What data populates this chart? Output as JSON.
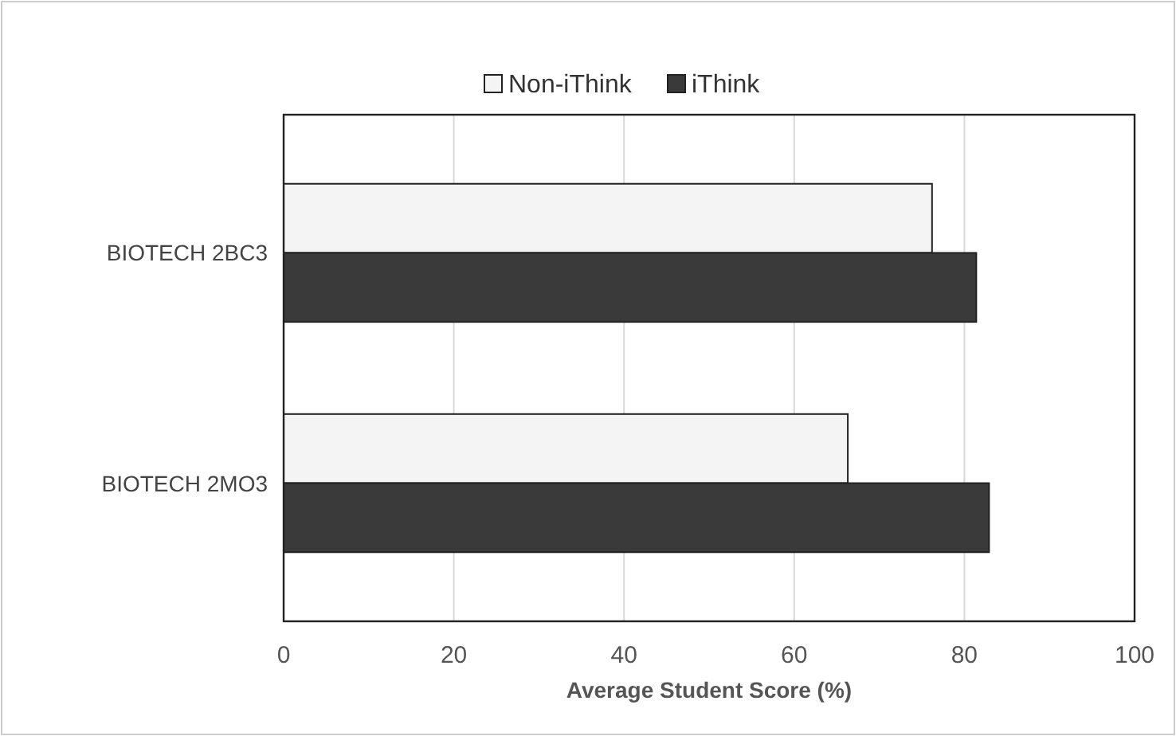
{
  "chart_data": {
    "type": "bar",
    "orientation": "horizontal",
    "xlabel": "Average Student Score (%)",
    "categories": [
      "BIOTECH 2BC3",
      "BIOTECH 2MO3"
    ],
    "series": [
      {
        "name": "Non-iThink",
        "color": "#f4f4f4",
        "values": [
          76.2,
          66.3
        ]
      },
      {
        "name": "iThink",
        "color": "#3a3a3a",
        "values": [
          81.4,
          82.9
        ]
      }
    ],
    "xlim": [
      0,
      100
    ],
    "xticks": [
      0,
      20,
      40,
      60,
      80,
      100
    ],
    "grid": "x",
    "legend": "top"
  }
}
